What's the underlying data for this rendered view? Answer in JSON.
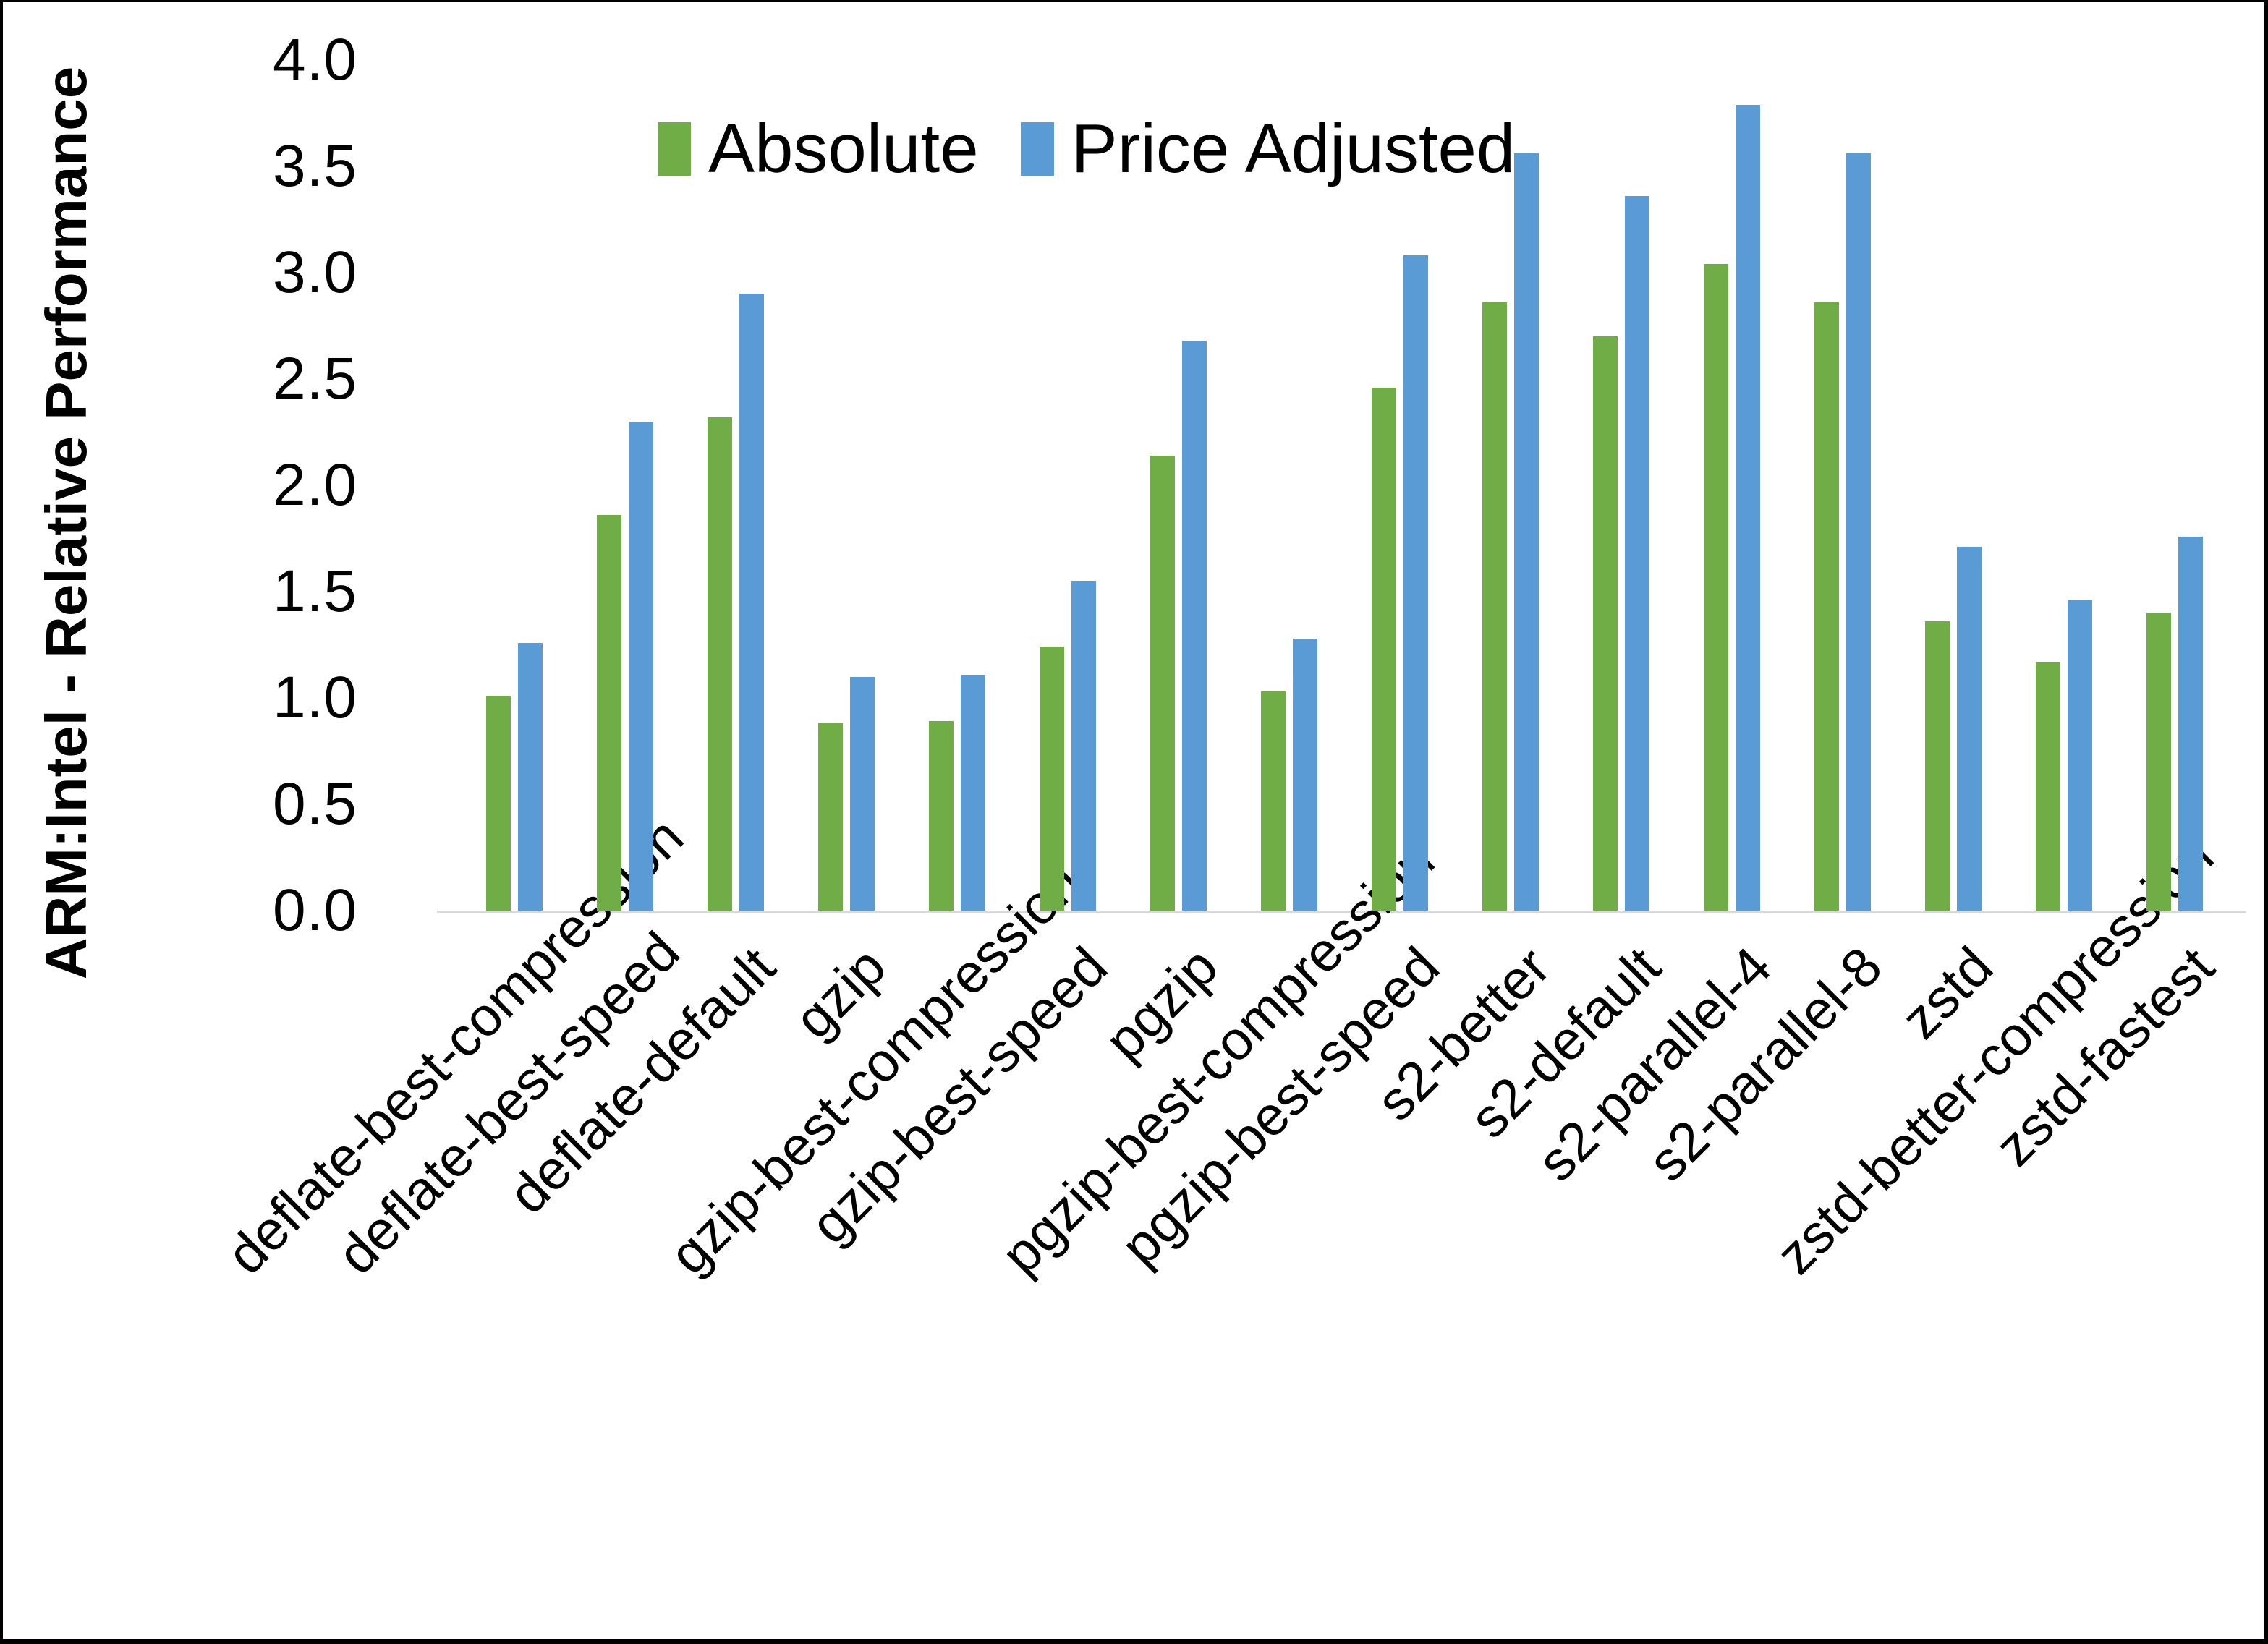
{
  "chart_data": {
    "type": "bar",
    "title": "",
    "ylabel": "ARM:Intel - Relative Performance",
    "xlabel": "",
    "ylim": [
      0.0,
      4.0
    ],
    "ytick_step": 0.5,
    "grid": false,
    "legend_position": "top-center",
    "axis_line_color": "#d9d9d9",
    "categories": [
      "deflate-best-compression",
      "deflate-best-speed",
      "deflate-default",
      "gzip",
      "gzip-best-compression",
      "gzip-best-speed",
      "pgzip",
      "pgzip-best-compression",
      "pgzip-best-speed",
      "s2-better",
      "s2-default",
      "s2-parallel-4",
      "s2-parallel-8",
      "zstd",
      "zstd-better-compression",
      "zstd-fastest"
    ],
    "series": [
      {
        "name": "Absolute",
        "color": "#70AD47",
        "values": [
          1.01,
          1.86,
          2.32,
          0.88,
          0.89,
          1.24,
          2.14,
          1.03,
          2.46,
          2.86,
          2.7,
          3.04,
          2.86,
          1.36,
          1.17,
          1.4
        ]
      },
      {
        "name": "Price Adjusted",
        "color": "#5B9BD5",
        "values": [
          1.26,
          2.3,
          2.9,
          1.1,
          1.11,
          1.55,
          2.68,
          1.28,
          3.08,
          3.56,
          3.36,
          3.79,
          3.56,
          1.71,
          1.46,
          1.76
        ]
      }
    ]
  }
}
